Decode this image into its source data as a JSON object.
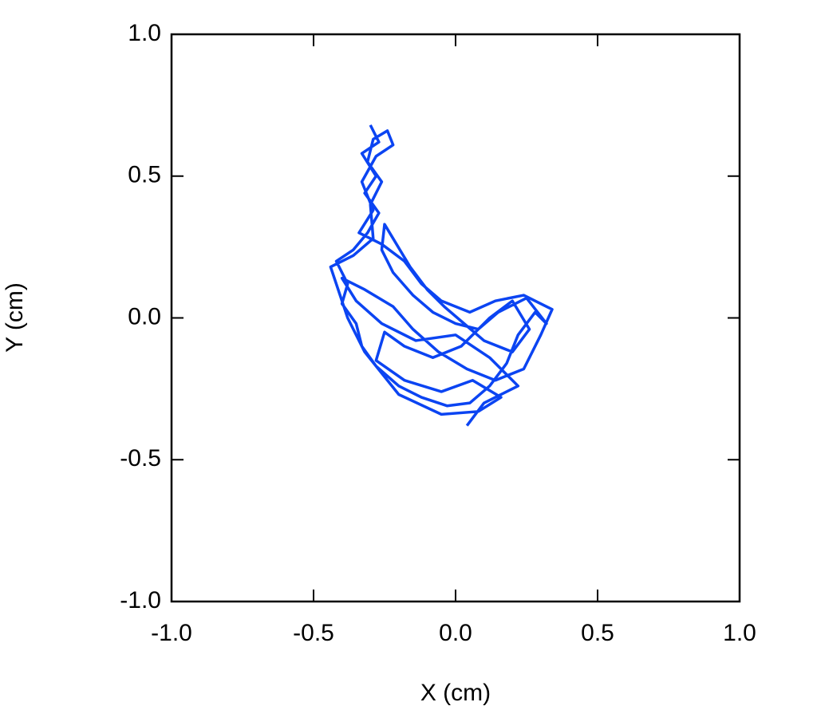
{
  "chart_data": {
    "type": "line",
    "xlabel": "X (cm)",
    "ylabel": "Y (cm)",
    "xlim": [
      -1,
      1
    ],
    "ylim": [
      -1,
      1
    ],
    "xticks": [
      {
        "value": -1,
        "label": "-1.0"
      },
      -0.5,
      {
        "value": 0,
        "label": "0.0"
      },
      0.5,
      {
        "value": 1,
        "label": "1.0"
      }
    ],
    "yticks": [
      {
        "value": -1,
        "label": "-1.0"
      },
      -0.5,
      {
        "value": 0,
        "label": "0.0"
      },
      0.5,
      {
        "value": 1,
        "label": "1.0"
      }
    ],
    "grid": false,
    "x": [
      -0.3,
      -0.27,
      -0.33,
      -0.28,
      -0.32,
      -0.27,
      -0.31,
      -0.36,
      -0.42,
      -0.38,
      -0.4,
      -0.35,
      -0.33,
      -0.28,
      -0.2,
      -0.12,
      -0.03,
      0.05,
      0.12,
      0.18,
      0.22,
      0.28,
      0.32,
      0.25,
      0.15,
      0.08,
      0.0,
      -0.08,
      -0.15,
      -0.22,
      -0.26,
      -0.25,
      -0.22,
      -0.16,
      -0.1,
      -0.04,
      0.03,
      0.1,
      0.2,
      0.26,
      0.2,
      0.12,
      0.02,
      -0.08,
      -0.18,
      -0.25,
      -0.28,
      -0.18,
      -0.05,
      0.06,
      0.16,
      0.08,
      -0.05,
      -0.2,
      -0.32,
      -0.38,
      -0.44,
      -0.36,
      -0.29,
      -0.3,
      -0.26,
      -0.31,
      -0.29,
      -0.24,
      -0.22,
      -0.28,
      -0.33,
      -0.29,
      -0.34,
      -0.26,
      -0.18,
      -0.12,
      -0.05,
      0.05,
      0.14,
      0.24,
      0.34,
      0.3,
      0.24,
      0.14,
      0.04,
      -0.06,
      -0.15,
      -0.22,
      -0.32,
      -0.4,
      -0.35,
      -0.26,
      -0.14,
      0.0,
      0.12,
      0.22,
      0.1,
      0.04
    ],
    "series": [
      {
        "color": "#0b44f2",
        "values": [
          0.68,
          0.62,
          0.58,
          0.5,
          0.44,
          0.37,
          0.3,
          0.24,
          0.2,
          0.12,
          0.05,
          -0.02,
          -0.1,
          -0.17,
          -0.24,
          -0.28,
          -0.31,
          -0.3,
          -0.24,
          -0.16,
          -0.06,
          0.02,
          -0.02,
          0.07,
          0.02,
          -0.04,
          -0.02,
          0.02,
          0.08,
          0.16,
          0.24,
          0.33,
          0.28,
          0.18,
          0.1,
          0.04,
          -0.02,
          -0.08,
          -0.12,
          -0.04,
          0.06,
          0.0,
          -0.1,
          -0.14,
          -0.1,
          -0.05,
          -0.15,
          -0.22,
          -0.26,
          -0.22,
          -0.28,
          -0.33,
          -0.34,
          -0.27,
          -0.12,
          0.0,
          0.18,
          0.22,
          0.28,
          0.4,
          0.48,
          0.55,
          0.63,
          0.66,
          0.61,
          0.57,
          0.48,
          0.38,
          0.3,
          0.26,
          0.2,
          0.12,
          0.06,
          0.02,
          0.06,
          0.08,
          0.03,
          -0.06,
          -0.18,
          -0.22,
          -0.18,
          -0.12,
          -0.04,
          0.04,
          0.1,
          0.14,
          0.06,
          -0.02,
          -0.08,
          -0.06,
          -0.14,
          -0.24,
          -0.3,
          -0.38
        ]
      }
    ]
  }
}
